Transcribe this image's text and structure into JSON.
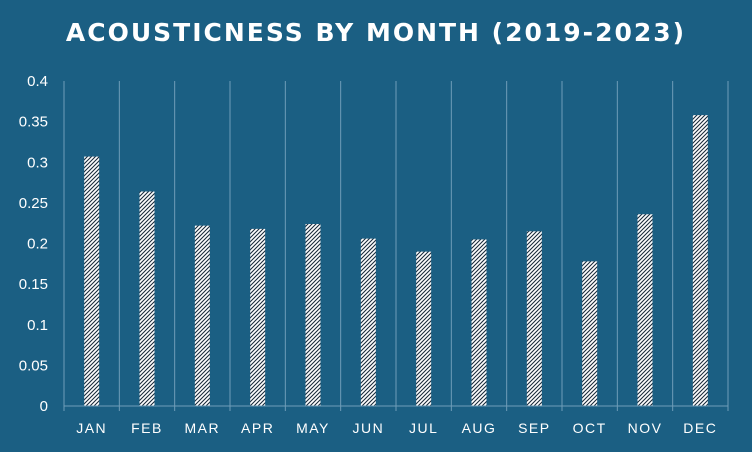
{
  "chart_data": {
    "type": "bar",
    "title": "ACOUSTICNESS BY MONTH (2019-2023)",
    "xlabel": "",
    "ylabel": "",
    "categories": [
      "JAN",
      "FEB",
      "MAR",
      "APR",
      "MAY",
      "JUN",
      "JUL",
      "AUG",
      "SEP",
      "OCT",
      "NOV",
      "DEC"
    ],
    "values": [
      0.307,
      0.264,
      0.222,
      0.218,
      0.224,
      0.206,
      0.19,
      0.205,
      0.215,
      0.178,
      0.236,
      0.358
    ],
    "ylim": [
      0,
      0.4
    ],
    "yticks": [
      "0",
      "0.05",
      "0.1",
      "0.15",
      "0.2",
      "0.25",
      "0.3",
      "0.35",
      "0.4"
    ],
    "grid": "vertical lines between categories",
    "legend": "none",
    "colors": {
      "background": "#1b5f83",
      "bar_fill": "#ffffff",
      "bar_pattern": "#1a2a3a",
      "grid": "#6f9db8",
      "text": "#ffffff"
    }
  }
}
